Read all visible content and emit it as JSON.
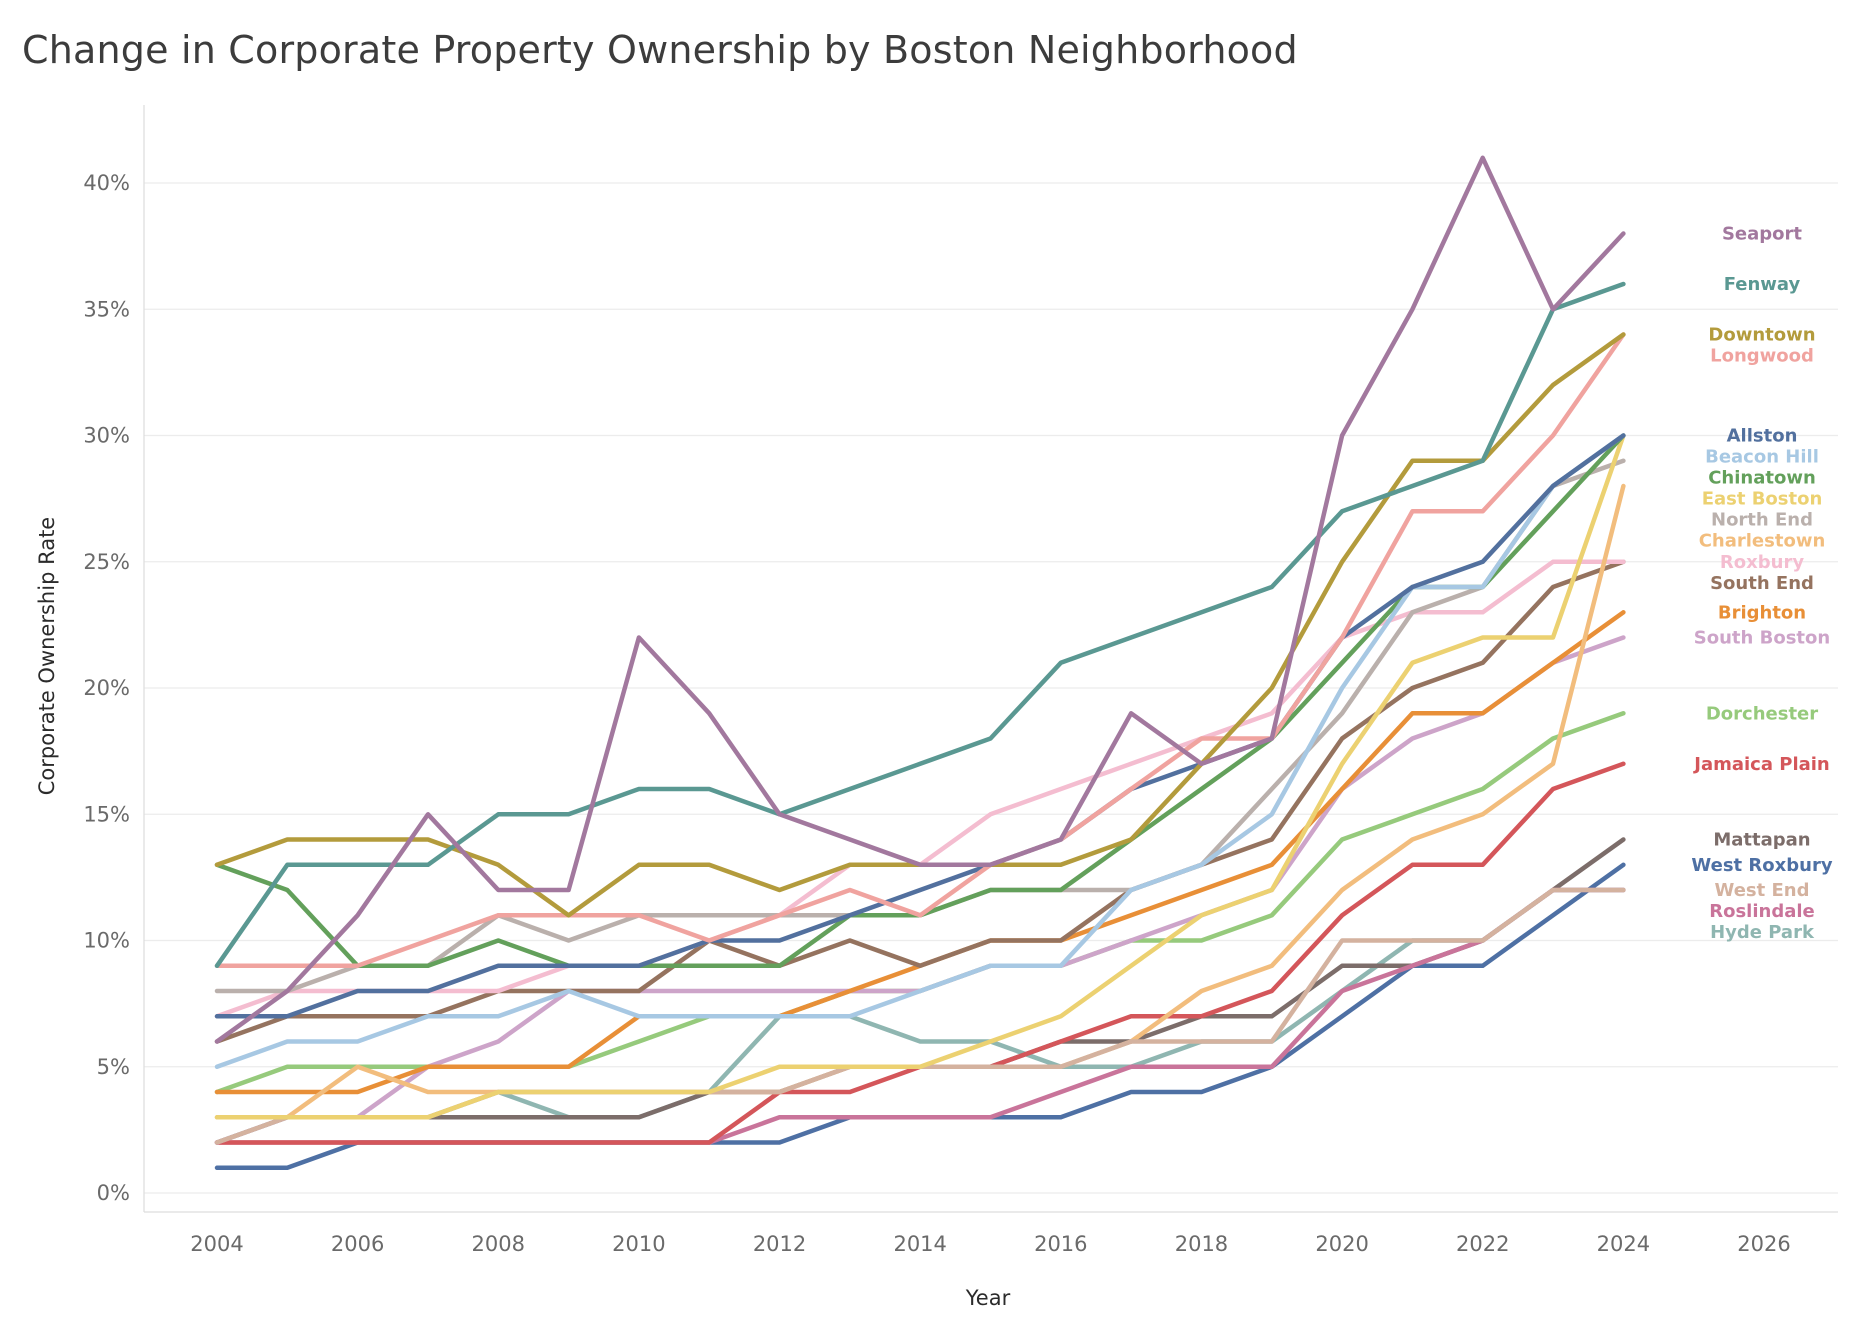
{
  "chart_data": {
    "type": "line",
    "title": "Change in Corporate Property Ownership by Boston Neighborhood",
    "xlabel": "Year",
    "ylabel": "Corporate Ownership Rate",
    "xlim": [
      2004,
      2026
    ],
    "ylim": [
      0,
      42
    ],
    "x_ticks": [
      2004,
      2006,
      2008,
      2010,
      2012,
      2014,
      2016,
      2018,
      2020,
      2022,
      2024,
      2026
    ],
    "y_ticks": [
      0,
      5,
      10,
      15,
      20,
      25,
      30,
      35,
      40
    ],
    "y_tick_format": "%",
    "grid": true,
    "legend": "end-of-line labels on right",
    "x": [
      2004,
      2005,
      2006,
      2007,
      2008,
      2009,
      2010,
      2011,
      2012,
      2013,
      2014,
      2015,
      2016,
      2017,
      2018,
      2019,
      2020,
      2021,
      2022,
      2023,
      2024
    ],
    "series": [
      {
        "name": "Seaport",
        "color": "#a2789e",
        "values": [
          6,
          8,
          11,
          15,
          12,
          12,
          22,
          19,
          15,
          14,
          13,
          13,
          14,
          19,
          17,
          18,
          30,
          35,
          41,
          35,
          38
        ]
      },
      {
        "name": "Fenway",
        "color": "#5a9892",
        "values": [
          9,
          13,
          13,
          13,
          15,
          15,
          16,
          16,
          15,
          16,
          17,
          18,
          21,
          22,
          23,
          24,
          27,
          28,
          29,
          35,
          36
        ]
      },
      {
        "name": "Downtown",
        "color": "#b39b3c",
        "values": [
          13,
          14,
          14,
          14,
          13,
          11,
          13,
          13,
          12,
          13,
          13,
          13,
          13,
          14,
          17,
          20,
          25,
          29,
          29,
          32,
          34
        ]
      },
      {
        "name": "Longwood",
        "color": "#f0a39f",
        "values": [
          9,
          9,
          9,
          10,
          11,
          11,
          11,
          10,
          11,
          12,
          11,
          13,
          14,
          16,
          18,
          18,
          22,
          27,
          27,
          30,
          34
        ]
      },
      {
        "name": "Allston",
        "color": "#52709e",
        "values": [
          7,
          7,
          8,
          8,
          9,
          9,
          9,
          10,
          10,
          11,
          12,
          13,
          14,
          16,
          17,
          18,
          22,
          24,
          25,
          28,
          30
        ]
      },
      {
        "name": "Beacon Hill",
        "color": "#a7c8e3",
        "values": [
          5,
          6,
          6,
          7,
          7,
          8,
          7,
          7,
          7,
          7,
          8,
          9,
          9,
          12,
          13,
          15,
          20,
          24,
          24,
          28,
          30
        ]
      },
      {
        "name": "Chinatown",
        "color": "#63a05b",
        "values": [
          13,
          12,
          9,
          9,
          10,
          9,
          9,
          9,
          9,
          11,
          11,
          12,
          12,
          14,
          16,
          18,
          21,
          24,
          24,
          27,
          30
        ]
      },
      {
        "name": "East Boston",
        "color": "#ecd171",
        "values": [
          3,
          3,
          3,
          3,
          4,
          4,
          4,
          4,
          5,
          5,
          5,
          6,
          7,
          9,
          11,
          12,
          17,
          21,
          22,
          22,
          30
        ]
      },
      {
        "name": "North End",
        "color": "#bab0ac",
        "values": [
          8,
          8,
          9,
          9,
          11,
          10,
          11,
          11,
          11,
          11,
          11,
          12,
          12,
          12,
          13,
          16,
          19,
          23,
          24,
          28,
          29
        ]
      },
      {
        "name": "West End",
        "color": "#d4b29f",
        "values": [
          2,
          3,
          3,
          3,
          4,
          4,
          4,
          4,
          4,
          5,
          5,
          5,
          5,
          6,
          6,
          6,
          10,
          10,
          10,
          12,
          12
        ]
      },
      {
        "name": "Charlestown",
        "color": "#f2bd7d",
        "values": [
          3,
          3,
          5,
          4,
          4,
          4,
          4,
          4,
          4,
          5,
          5,
          5,
          5,
          6,
          8,
          9,
          12,
          14,
          15,
          17,
          28
        ]
      },
      {
        "name": "Roxbury",
        "color": "#f4bdd0",
        "values": [
          7,
          8,
          8,
          8,
          8,
          9,
          9,
          10,
          11,
          13,
          13,
          15,
          16,
          17,
          18,
          19,
          22,
          23,
          23,
          25,
          25
        ]
      },
      {
        "name": "South End",
        "color": "#95735f",
        "values": [
          6,
          7,
          7,
          7,
          8,
          8,
          8,
          10,
          9,
          10,
          9,
          10,
          10,
          12,
          13,
          14,
          18,
          20,
          21,
          24,
          25
        ]
      },
      {
        "name": "Brighton",
        "color": "#e88f37",
        "values": [
          4,
          4,
          4,
          5,
          5,
          5,
          7,
          7,
          7,
          8,
          9,
          10,
          10,
          11,
          12,
          13,
          16,
          19,
          19,
          21,
          23
        ]
      },
      {
        "name": "South Boston",
        "color": "#cda4c9",
        "values": [
          2,
          3,
          3,
          5,
          6,
          8,
          8,
          8,
          8,
          8,
          8,
          9,
          9,
          10,
          11,
          12,
          16,
          18,
          19,
          21,
          22
        ]
      },
      {
        "name": "Dorchester",
        "color": "#96ca7c",
        "values": [
          4,
          5,
          5,
          5,
          5,
          5,
          6,
          7,
          7,
          8,
          8,
          9,
          9,
          10,
          10,
          11,
          14,
          15,
          16,
          18,
          19
        ]
      },
      {
        "name": "Jamaica Plain",
        "color": "#d4565a",
        "values": [
          2,
          2,
          2,
          2,
          2,
          2,
          2,
          2,
          4,
          4,
          5,
          5,
          6,
          7,
          7,
          8,
          11,
          13,
          13,
          16,
          17
        ]
      },
      {
        "name": "Roslindale",
        "color": "#c9749a",
        "values": [
          2,
          2,
          2,
          2,
          2,
          2,
          2,
          2,
          3,
          3,
          3,
          3,
          4,
          5,
          5,
          5,
          8,
          9,
          10,
          12,
          12
        ]
      },
      {
        "name": "Mattapan",
        "color": "#7c6d6a",
        "values": [
          2,
          3,
          3,
          3,
          3,
          3,
          3,
          4,
          4,
          5,
          5,
          5,
          6,
          6,
          7,
          7,
          9,
          9,
          10,
          12,
          14
        ]
      },
      {
        "name": "West Roxbury",
        "color": "#4e70a4",
        "values": [
          1,
          1,
          2,
          2,
          2,
          2,
          2,
          2,
          2,
          3,
          3,
          3,
          3,
          4,
          4,
          5,
          7,
          9,
          9,
          11,
          13
        ]
      },
      {
        "name": "Hyde Park",
        "color": "#8fb6b1",
        "values": [
          2,
          3,
          3,
          3,
          4,
          3,
          3,
          4,
          7,
          7,
          6,
          6,
          5,
          5,
          6,
          6,
          8,
          10,
          10,
          12,
          12
        ]
      }
    ]
  }
}
